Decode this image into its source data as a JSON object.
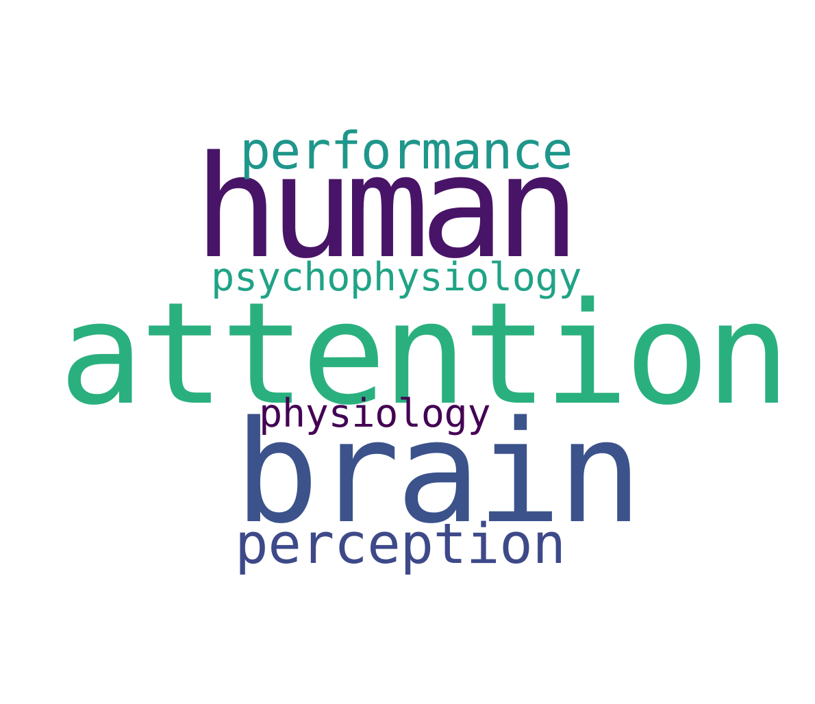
{
  "cloud": {
    "words": [
      {
        "text": "attention",
        "color": "#2ab07f"
      },
      {
        "text": "brain",
        "color": "#3b528b"
      },
      {
        "text": "human",
        "color": "#481467"
      },
      {
        "text": "performance",
        "color": "#1f968b"
      },
      {
        "text": "perception",
        "color": "#3e4989"
      },
      {
        "text": "psychophysiology",
        "color": "#20a386"
      },
      {
        "text": "physiology",
        "color": "#440154"
      }
    ]
  }
}
